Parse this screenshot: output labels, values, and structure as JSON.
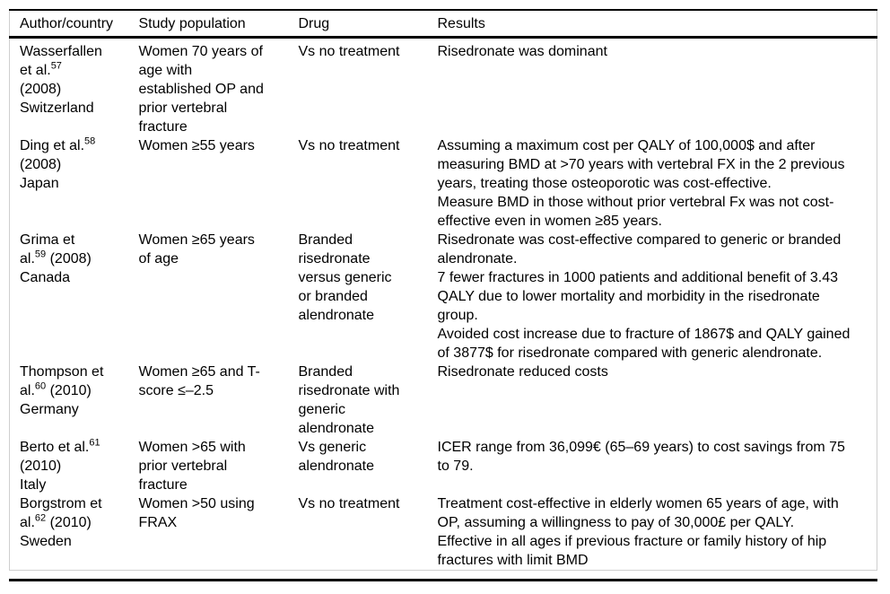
{
  "page": {
    "background": "#ffffff"
  },
  "table": {
    "colors": {
      "rule": "#000000",
      "grid": "#cfcfcf",
      "text": "#000000"
    },
    "header": [
      "Author/country",
      "Study population",
      "Drug",
      "Results"
    ],
    "rows": [
      {
        "author": [
          "Wasserfallen",
          "et al.|57|",
          "(2008)",
          "Switzerland"
        ],
        "population": [
          "Women 70 years of",
          "age with",
          "established OP and",
          "prior vertebral",
          "fracture"
        ],
        "drug": [
          "Vs no treatment"
        ],
        "results": [
          "Risedronate was dominant"
        ]
      },
      {
        "author": [
          "Ding et al.|58|",
          "(2008)",
          "Japan"
        ],
        "population": [
          "Women ≥55 years"
        ],
        "drug": [
          "Vs no treatment"
        ],
        "results": [
          "Assuming a maximum cost per QALY of 100,000$ and after measuring BMD at >70 years with vertebral FX in the 2 previous years, treating those osteoporotic was cost-effective.",
          "Measure BMD in those without prior vertebral Fx was not cost-effective even in women ≥85 years."
        ]
      },
      {
        "author": [
          "Grima et",
          "al.|59| (2008)",
          "Canada"
        ],
        "population": [
          "Women ≥65 years",
          "of age"
        ],
        "drug": [
          "Branded",
          "risedronate",
          "versus generic",
          "or branded",
          "alendronate"
        ],
        "results": [
          "Risedronate was cost-effective compared to generic or branded alendronate.",
          "7 fewer fractures in 1000 patients and additional benefit of 3.43 QALY due to lower mortality and morbidity in the risedronate group.",
          "Avoided cost increase due to fracture of 1867$ and QALY gained of 3877$ for risedronate compared with generic alendronate."
        ]
      },
      {
        "author": [
          "Thompson et",
          "al.|60| (2010)",
          "Germany"
        ],
        "population": [
          "Women ≥65 and T-",
          "score ≤–2.5"
        ],
        "drug": [
          "Branded",
          "risedronate with",
          "generic",
          "alendronate"
        ],
        "results": [
          "Risedronate reduced costs"
        ]
      },
      {
        "author": [
          "Berto et al.|61|",
          "(2010)",
          "Italy"
        ],
        "population": [
          "Women >65 with",
          "prior vertebral",
          "fracture"
        ],
        "drug": [
          "Vs generic",
          "alendronate"
        ],
        "results": [
          "ICER range from 36,099€ (65–69 years) to cost savings from 75 to 79."
        ]
      },
      {
        "author": [
          "Borgstrom et",
          "al.|62| (2010)",
          "Sweden"
        ],
        "population": [
          "Women >50 using",
          "FRAX"
        ],
        "drug": [
          "Vs no treatment"
        ],
        "results": [
          "Treatment cost-effective in elderly women 65 years of age, with OP, assuming a willingness to pay of 30,000£ per QALY.",
          "Effective in all ages if previous fracture or family history of hip fractures with limit BMD"
        ]
      }
    ]
  }
}
